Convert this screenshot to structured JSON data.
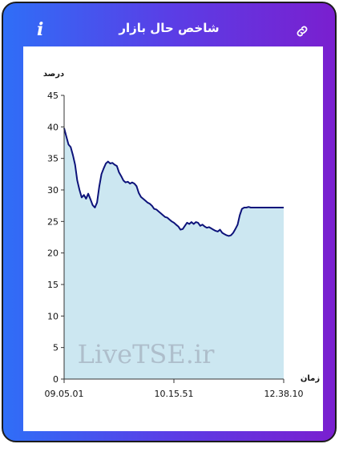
{
  "header": {
    "title": "شاخص حال بازار",
    "info_icon": "info-icon",
    "link_icon": "link-icon"
  },
  "colors": {
    "gradient_left": "#2f6ef7",
    "gradient_right": "#7a1fcf",
    "line": "#0d137a",
    "fill": "#cce7f1"
  },
  "watermark": "LiveTSE.ir",
  "chart_data": {
    "type": "area",
    "ylabel": "درصد",
    "xlabel": "زمان",
    "ylim": [
      0,
      45
    ],
    "yticks": [
      0,
      5,
      10,
      15,
      20,
      25,
      30,
      35,
      40,
      45
    ],
    "xtick_labels": [
      "09.05.01",
      "10.15.51",
      "12.38.10"
    ],
    "grid": false,
    "x_fraction": [
      0,
      0.01,
      0.02,
      0.03,
      0.04,
      0.05,
      0.06,
      0.07,
      0.08,
      0.09,
      0.1,
      0.11,
      0.12,
      0.13,
      0.14,
      0.15,
      0.16,
      0.17,
      0.18,
      0.19,
      0.2,
      0.21,
      0.22,
      0.23,
      0.24,
      0.25,
      0.26,
      0.27,
      0.28,
      0.29,
      0.3,
      0.31,
      0.32,
      0.33,
      0.34,
      0.35,
      0.36,
      0.37,
      0.38,
      0.39,
      0.4,
      0.41,
      0.42,
      0.43,
      0.44,
      0.45,
      0.46,
      0.47,
      0.48,
      0.49,
      0.5,
      0.51,
      0.52,
      0.53,
      0.54,
      0.55,
      0.56,
      0.57,
      0.58,
      0.59,
      0.6,
      0.61,
      0.62,
      0.63,
      0.64,
      0.65,
      0.66,
      0.67,
      0.68,
      0.69,
      0.7,
      0.71,
      0.72,
      0.73,
      0.74,
      0.75,
      0.76,
      0.77,
      0.78,
      0.79,
      0.8,
      0.81,
      0.82,
      0.83,
      0.84,
      0.85,
      0.86,
      0.87,
      0.88,
      0.89,
      0.9,
      0.91,
      0.92,
      0.93,
      0.94,
      0.95,
      0.96,
      0.97,
      0.98,
      0.99,
      1.0
    ],
    "values": [
      39.8,
      38.5,
      37.2,
      36.8,
      35.5,
      34.0,
      31.5,
      30.0,
      28.8,
      29.2,
      28.6,
      29.4,
      28.5,
      27.6,
      27.2,
      28.0,
      30.5,
      32.5,
      33.4,
      34.2,
      34.5,
      34.2,
      34.3,
      34.0,
      33.8,
      32.8,
      32.2,
      31.5,
      31.2,
      31.3,
      31.0,
      31.2,
      31.0,
      30.6,
      29.5,
      28.9,
      28.6,
      28.3,
      28.0,
      27.8,
      27.5,
      27.0,
      26.9,
      26.6,
      26.3,
      26.0,
      25.7,
      25.6,
      25.3,
      25.0,
      24.8,
      24.5,
      24.2,
      23.7,
      23.8,
      24.3,
      24.8,
      24.6,
      24.9,
      24.6,
      24.9,
      24.8,
      24.3,
      24.5,
      24.2,
      24.0,
      24.1,
      23.9,
      23.7,
      23.5,
      23.4,
      23.7,
      23.2,
      23.0,
      22.8,
      22.7,
      22.8,
      23.2,
      23.8,
      24.5,
      26.0,
      27.0,
      27.2,
      27.2,
      27.3,
      27.2,
      27.2,
      27.2,
      27.2,
      27.2,
      27.2,
      27.2,
      27.2,
      27.2,
      27.2,
      27.2,
      27.2,
      27.2,
      27.2,
      27.2,
      27.2
    ]
  }
}
